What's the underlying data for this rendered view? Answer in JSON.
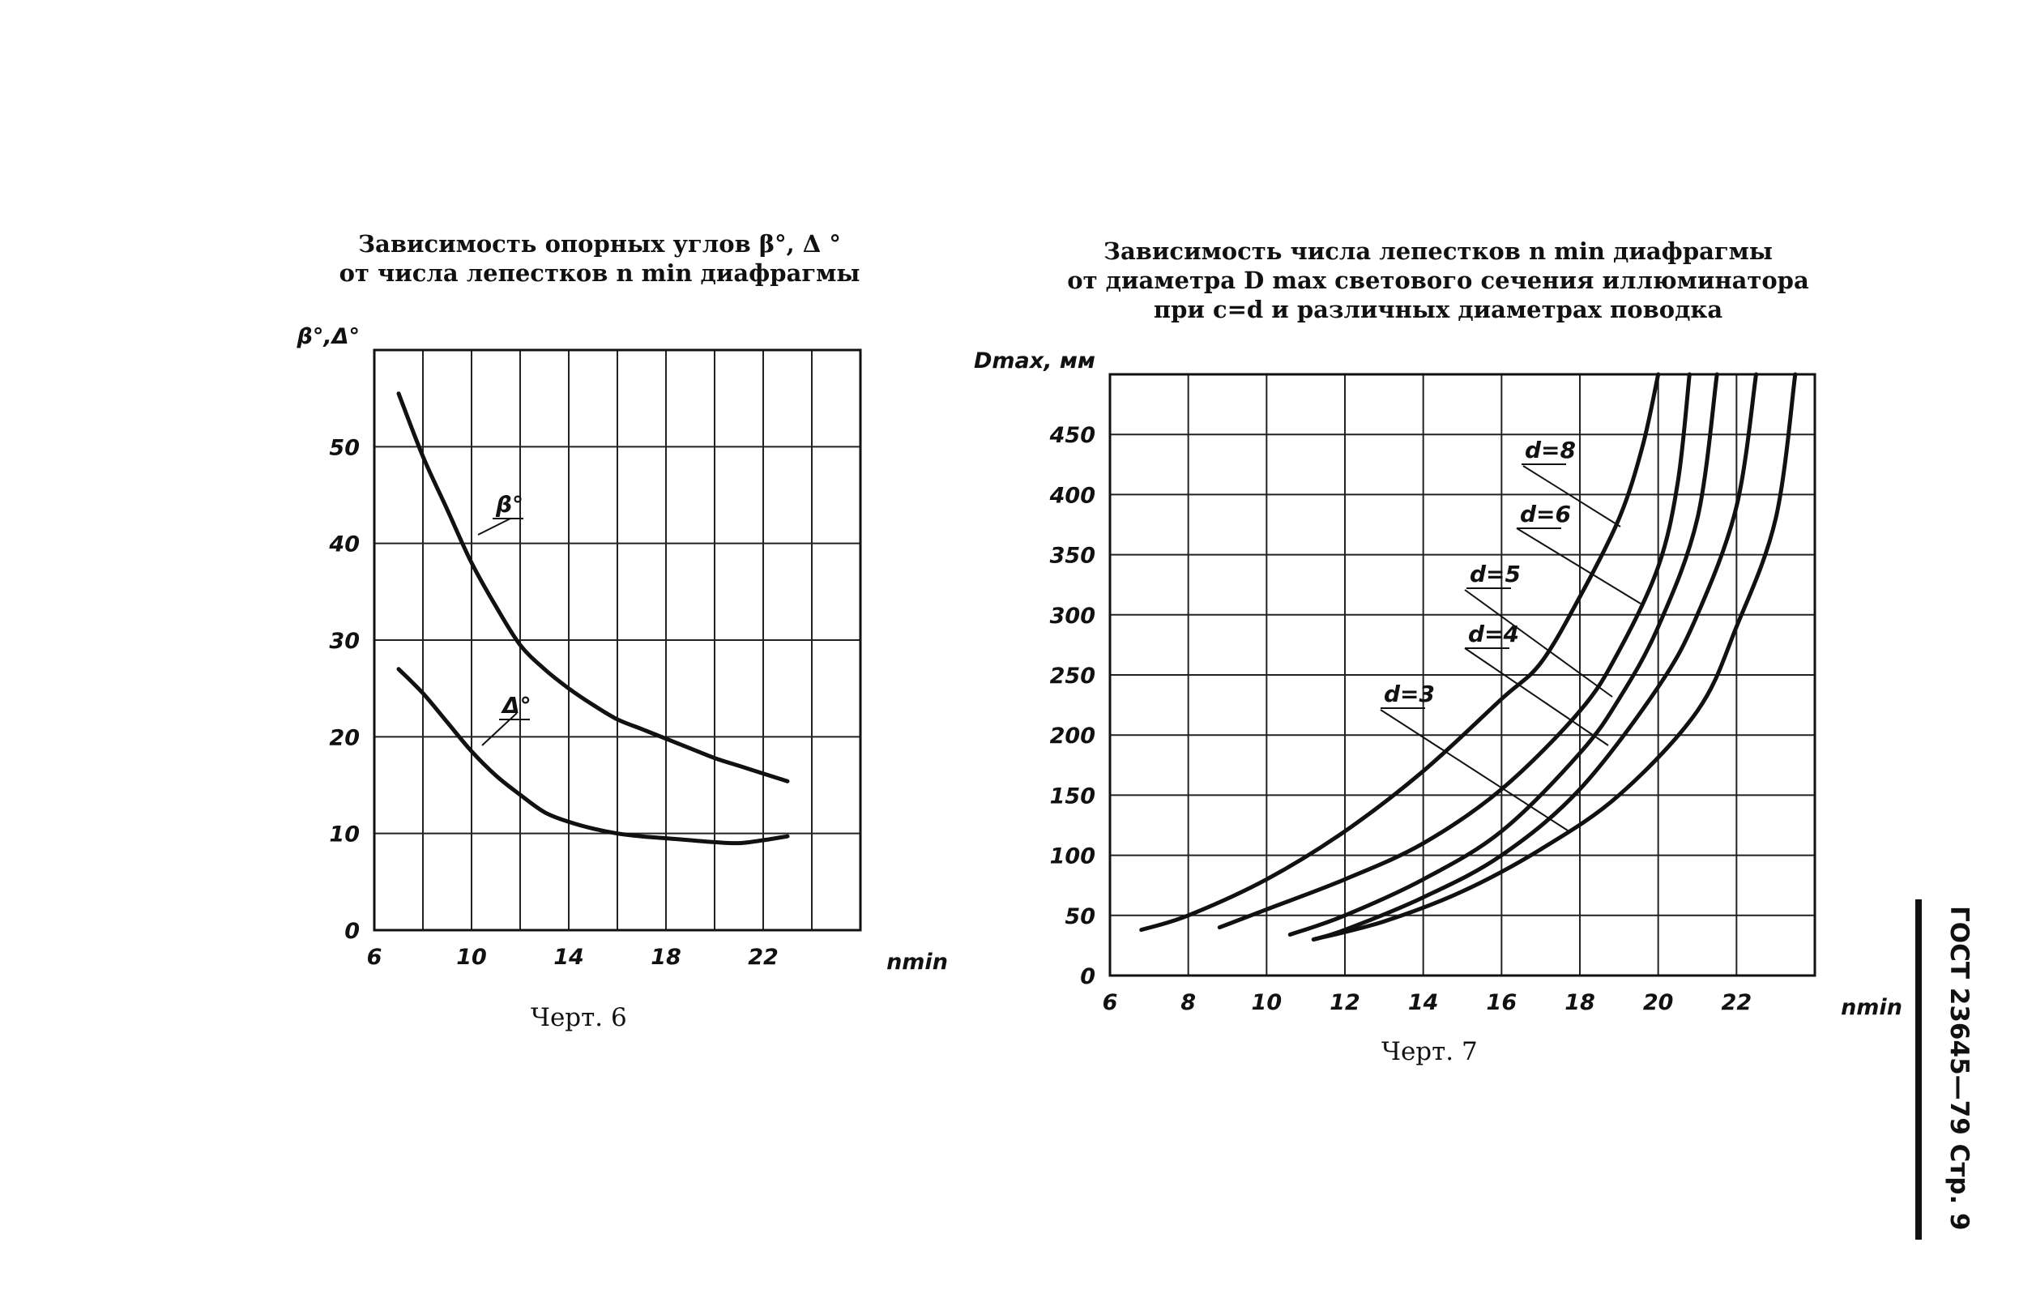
{
  "chart_data": [
    {
      "type": "line",
      "title_lines": [
        "Зависимость опорных углов β°, Δ °",
        "от числа лепестков n min  диафрагмы"
      ],
      "caption": "Черт. 6",
      "ylabel": "β°,Δ°",
      "xlabel": "nmin",
      "xlim": [
        6,
        26
      ],
      "ylim": [
        0,
        60
      ],
      "x_ticks": [
        6,
        10,
        14,
        18,
        22
      ],
      "y_ticks": [
        0,
        10,
        20,
        30,
        40,
        50
      ],
      "grid": true,
      "series": [
        {
          "name": "β°",
          "label": "β°",
          "points": [
            [
              7,
              55.5
            ],
            [
              8,
              49
            ],
            [
              9,
              43.5
            ],
            [
              10,
              38
            ],
            [
              11,
              33.5
            ],
            [
              12,
              29.5
            ],
            [
              13,
              27
            ],
            [
              14,
              25
            ],
            [
              15,
              23.3
            ],
            [
              16,
              21.8
            ],
            [
              17,
              20.8
            ],
            [
              18,
              19.8
            ],
            [
              19,
              18.8
            ],
            [
              20,
              17.8
            ],
            [
              21,
              17
            ],
            [
              22,
              16.2
            ],
            [
              23,
              15.4
            ]
          ]
        },
        {
          "name": "Δ°",
          "label": "Δ°",
          "points": [
            [
              7,
              27
            ],
            [
              8,
              24.5
            ],
            [
              9,
              21.5
            ],
            [
              10,
              18.5
            ],
            [
              11,
              16
            ],
            [
              12,
              14
            ],
            [
              13,
              12.2
            ],
            [
              14,
              11.2
            ],
            [
              15,
              10.5
            ],
            [
              16,
              10
            ],
            [
              17,
              9.7
            ],
            [
              18,
              9.5
            ],
            [
              19,
              9.3
            ],
            [
              20,
              9.1
            ],
            [
              21,
              9
            ],
            [
              22,
              9.3
            ],
            [
              23,
              9.7
            ]
          ]
        }
      ]
    },
    {
      "type": "line",
      "title_lines": [
        "Зависимость числа лепестков n min  диафрагмы",
        "от диаметра D max светового сечения иллюминатора",
        "при  c=d  и  различных  диаметрах  поводка"
      ],
      "caption": "Черт. 7",
      "ylabel": "Dmax, мм",
      "xlabel": "nmin",
      "xlim": [
        6,
        24
      ],
      "ylim": [
        0,
        500
      ],
      "x_ticks": [
        6,
        8,
        10,
        12,
        14,
        16,
        18,
        20,
        22
      ],
      "y_ticks": [
        0,
        50,
        100,
        150,
        200,
        250,
        300,
        350,
        400,
        450
      ],
      "y_tick_labels": [
        "0",
        "50",
        "100",
        "150",
        "200",
        "250",
        "300",
        "350",
        "400",
        "450"
      ],
      "grid": true,
      "series": [
        {
          "name": "d=8",
          "label": "d=8",
          "points": [
            [
              6.8,
              38
            ],
            [
              8,
              50
            ],
            [
              10,
              80
            ],
            [
              12,
              120
            ],
            [
              14,
              170
            ],
            [
              16,
              230
            ],
            [
              17,
              260
            ],
            [
              18,
              315
            ],
            [
              19,
              380
            ],
            [
              19.6,
              440
            ],
            [
              20,
              500
            ]
          ]
        },
        {
          "name": "d=6",
          "label": "d=6",
          "points": [
            [
              8.8,
              40
            ],
            [
              10,
              55
            ],
            [
              12,
              80
            ],
            [
              14,
              110
            ],
            [
              16,
              155
            ],
            [
              18,
              220
            ],
            [
              19,
              270
            ],
            [
              20,
              340
            ],
            [
              20.5,
              410
            ],
            [
              20.8,
              500
            ]
          ]
        },
        {
          "name": "d=5",
          "label": "d=5",
          "points": [
            [
              10.6,
              34
            ],
            [
              12,
              50
            ],
            [
              14,
              80
            ],
            [
              16,
              120
            ],
            [
              18,
              185
            ],
            [
              19,
              230
            ],
            [
              20,
              290
            ],
            [
              21,
              380
            ],
            [
              21.5,
              500
            ]
          ]
        },
        {
          "name": "d=4",
          "label": "d=4",
          "points": [
            [
              11.2,
              30
            ],
            [
              12,
              38
            ],
            [
              14,
              65
            ],
            [
              16,
              100
            ],
            [
              18,
              155
            ],
            [
              20,
              240
            ],
            [
              21,
              300
            ],
            [
              22,
              390
            ],
            [
              22.5,
              500
            ]
          ]
        },
        {
          "name": "d=3",
          "label": "d=3",
          "points": [
            [
              11.2,
              30
            ],
            [
              13,
              45
            ],
            [
              15,
              70
            ],
            [
              17,
              105
            ],
            [
              19,
              150
            ],
            [
              21,
              220
            ],
            [
              22,
              290
            ],
            [
              23,
              380
            ],
            [
              23.5,
              500
            ]
          ]
        }
      ]
    }
  ],
  "side_label": "ГОСТ 23645—79  Стр. 9"
}
